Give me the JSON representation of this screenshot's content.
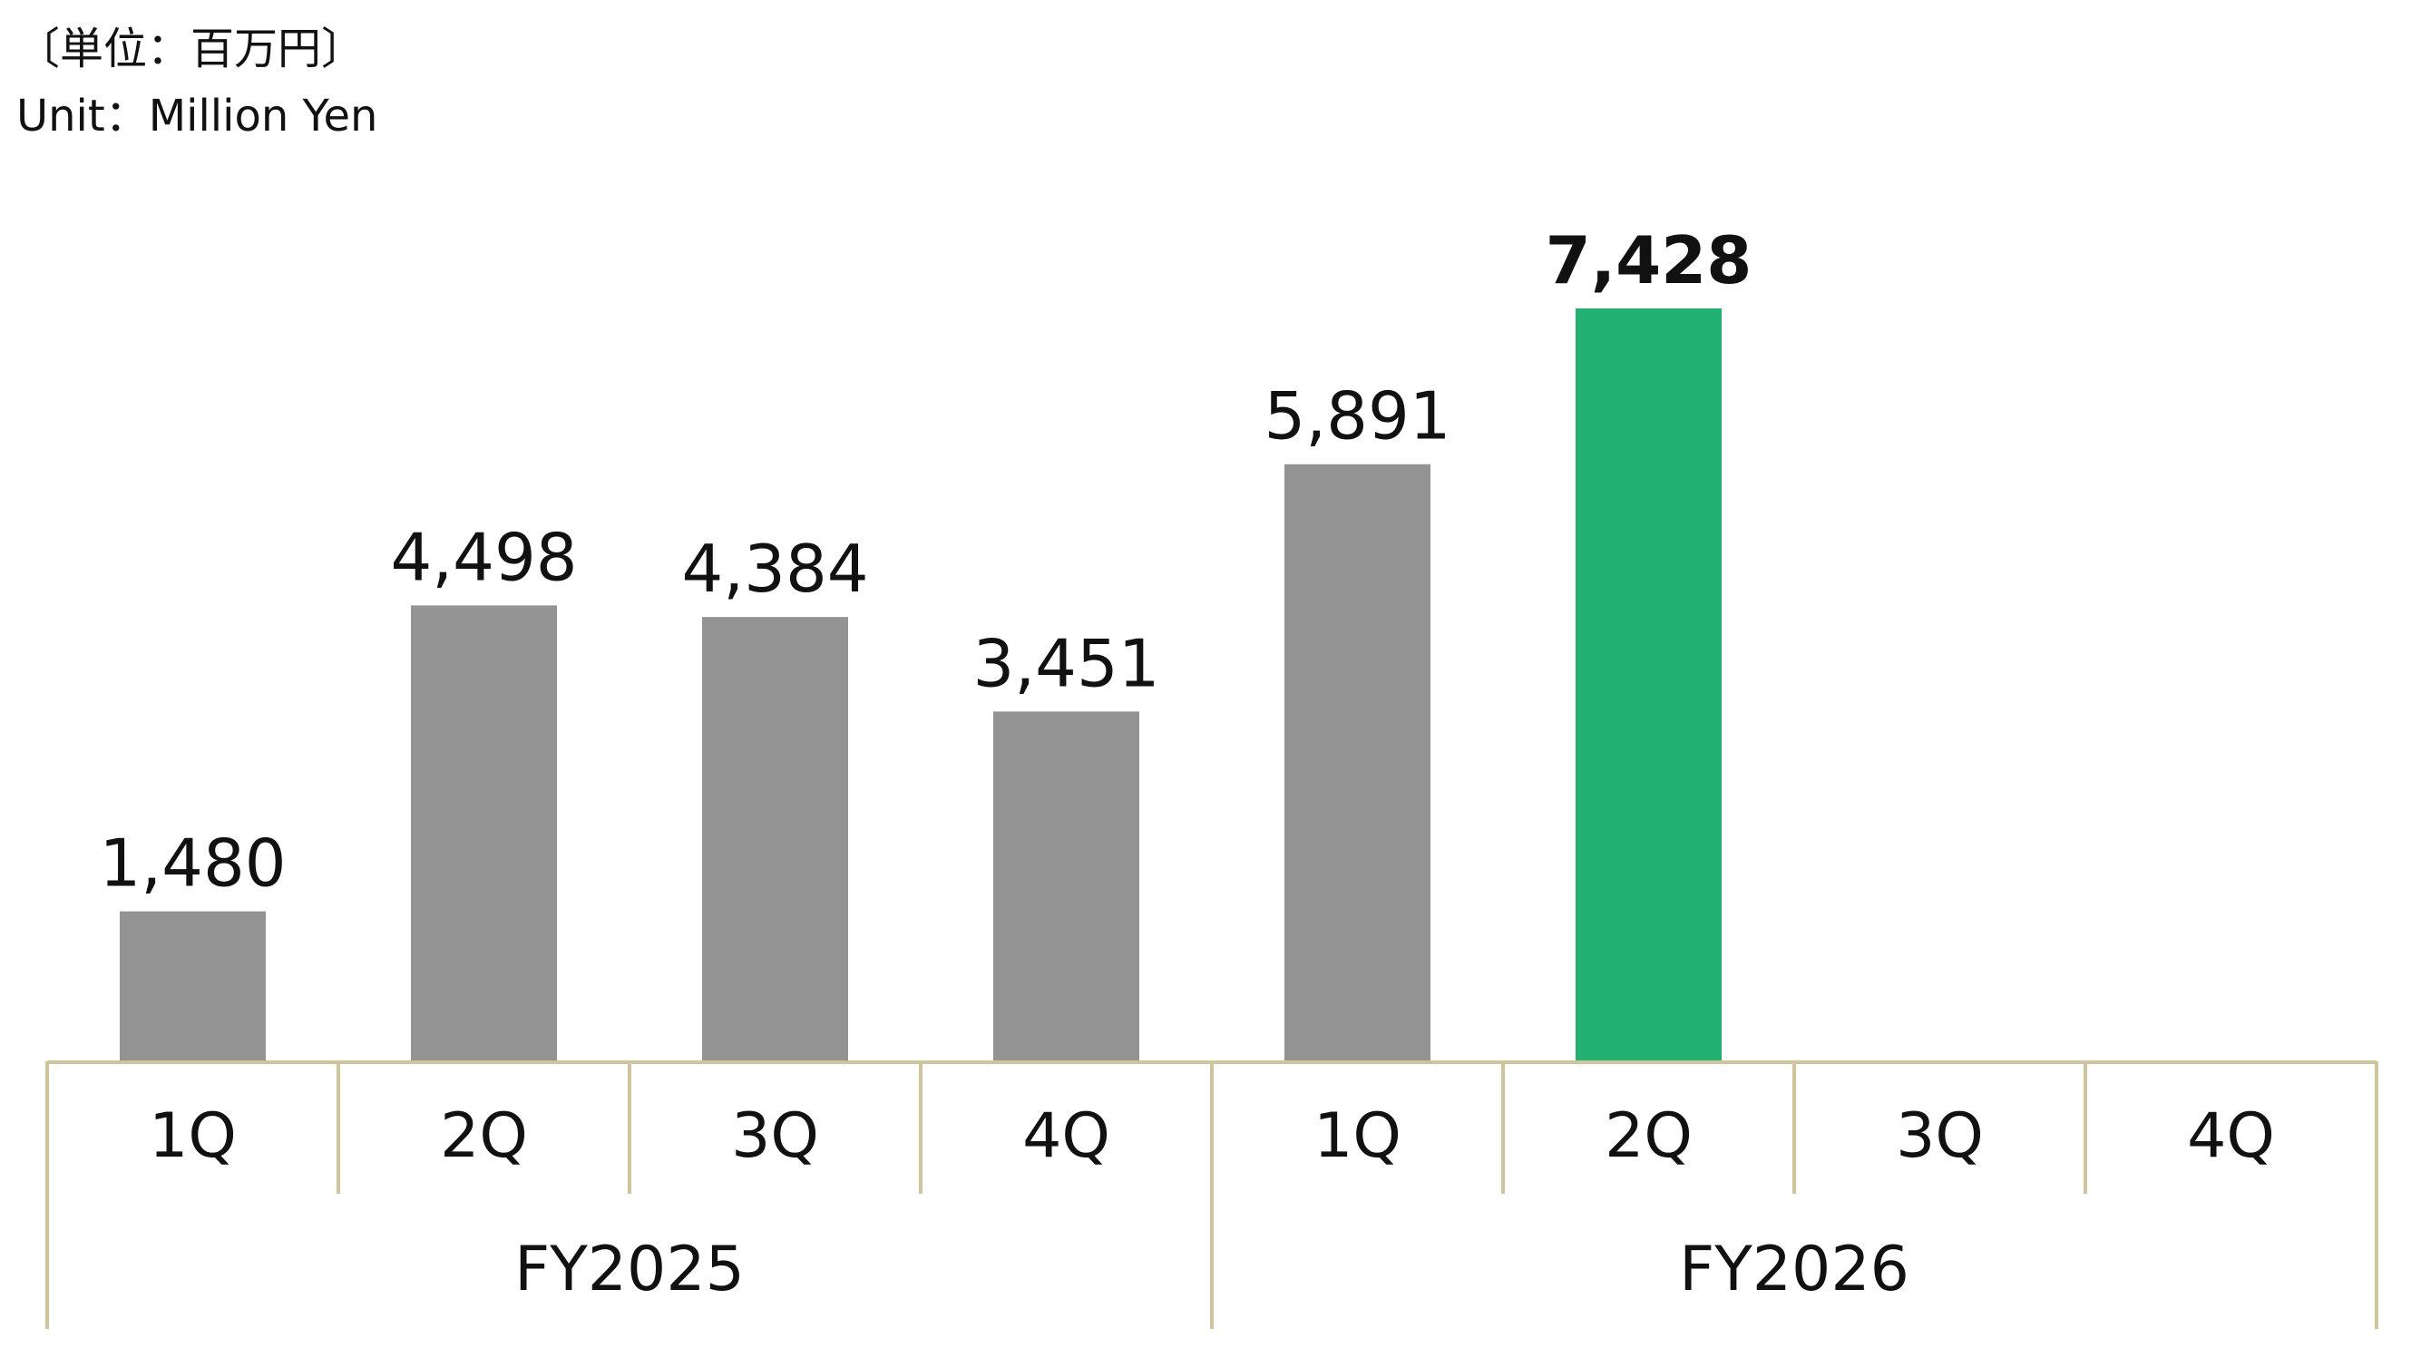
{
  "unit": {
    "ja": "〔単位：百万円〕",
    "en": "Unit：Million Yen"
  },
  "colors": {
    "bar_default": "#939393",
    "bar_highlight": "#22B173",
    "axis_line": "#CFC49B",
    "text": "#111111"
  },
  "chart_data": {
    "type": "bar",
    "title": "",
    "xlabel": "",
    "ylabel": "",
    "categories": [
      "1Q",
      "2Q",
      "3Q",
      "4Q",
      "1Q",
      "2Q",
      "3Q",
      "4Q"
    ],
    "groups": [
      {
        "label": "FY2025",
        "categories": [
          "1Q",
          "2Q",
          "3Q",
          "4Q"
        ]
      },
      {
        "label": "FY2026",
        "categories": [
          "1Q",
          "2Q",
          "3Q",
          "4Q"
        ]
      }
    ],
    "series": [
      {
        "values": [
          1480,
          4498,
          4384,
          3451,
          5891,
          7428,
          null,
          null
        ],
        "data_labels": [
          "1,480",
          "4,498",
          "4,384",
          "3,451",
          "5,891",
          "7,428",
          "",
          ""
        ],
        "highlight_index": 5
      }
    ],
    "ylim": [
      0,
      7428
    ],
    "grid": false,
    "legend": "none"
  }
}
